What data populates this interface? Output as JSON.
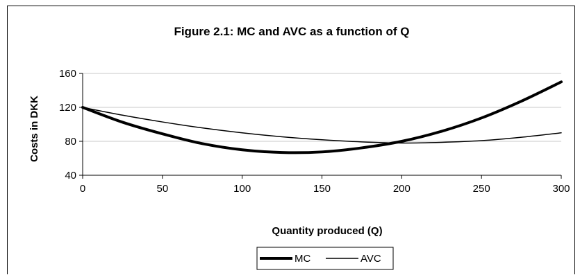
{
  "chart_data": {
    "type": "line",
    "title": "Figure 2.1: MC and AVC as a function of Q",
    "xlabel": "Quantity produced (Q)",
    "ylabel": "Costs in DKK",
    "xlim": [
      0,
      300
    ],
    "ylim": [
      40,
      160
    ],
    "x_ticks": [
      0,
      50,
      100,
      150,
      200,
      250,
      300
    ],
    "y_ticks": [
      40,
      80,
      120,
      160
    ],
    "x_tick_labels": [
      "0",
      "50",
      "100",
      "150",
      "200",
      "250",
      "300"
    ],
    "y_tick_labels": [
      "40",
      "80",
      "120",
      "160"
    ],
    "grid": "horizontal",
    "legend_position": "bottom",
    "x": [
      0,
      25,
      50,
      75,
      100,
      125,
      150,
      175,
      200,
      225,
      250,
      275,
      300
    ],
    "series": [
      {
        "name": "MC",
        "values": [
          120,
          102.5,
          88.8,
          77.3,
          70,
          66.8,
          67.5,
          72.3,
          80,
          91.8,
          107.5,
          127.3,
          150
        ],
        "color": "#000000",
        "style": "thick"
      },
      {
        "name": "AVC",
        "values": [
          120,
          110.8,
          102.8,
          95.8,
          90,
          85.3,
          81.8,
          79.3,
          78,
          78.8,
          80.8,
          84.8,
          90
        ],
        "color": "#000000",
        "style": "thin"
      }
    ]
  }
}
